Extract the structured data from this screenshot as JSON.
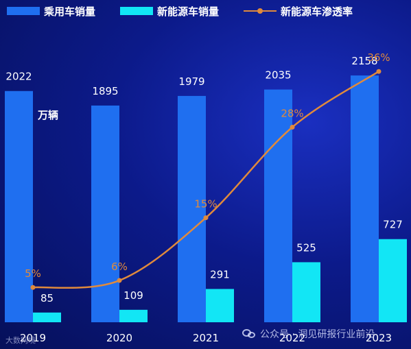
{
  "colors": {
    "passenger": "#1f6ff0",
    "nev": "#12e6f5",
    "rate": "#e08a3c",
    "axis_text": "#ffffff"
  },
  "legend": {
    "passenger": "乘用车销量",
    "nev": "新能源车销量",
    "rate": "新能源车渗透率"
  },
  "unit_label": "单位：万辆",
  "watermark": "公众号 · 洞见研报行业前沿",
  "logo_text": "大数网境",
  "chart_data": {
    "type": "bar",
    "title": "",
    "xlabel": "",
    "ylabel": "",
    "categories": [
      "2019",
      "2020",
      "2021",
      "2022",
      "2023"
    ],
    "series": [
      {
        "name": "乘用车销量",
        "type": "bar",
        "values": [
          2022,
          1895,
          1979,
          2035,
          2158
        ],
        "labels": [
          "2022",
          "1895",
          "1979",
          "2035",
          "2158"
        ]
      },
      {
        "name": "新能源车销量",
        "type": "bar",
        "values": [
          85,
          109,
          291,
          525,
          727
        ],
        "labels": [
          "85",
          "109",
          "291",
          "525",
          "727"
        ]
      },
      {
        "name": "新能源车渗透率",
        "type": "line",
        "values": [
          5,
          6,
          15,
          28,
          36
        ],
        "labels": [
          "5%",
          "6%",
          "15%",
          "28%",
          "36%"
        ],
        "unit": "%"
      }
    ],
    "ylim": [
      0,
      2650
    ],
    "y2lim": [
      0,
      43.5
    ],
    "grid": false,
    "legend_position": "top"
  }
}
